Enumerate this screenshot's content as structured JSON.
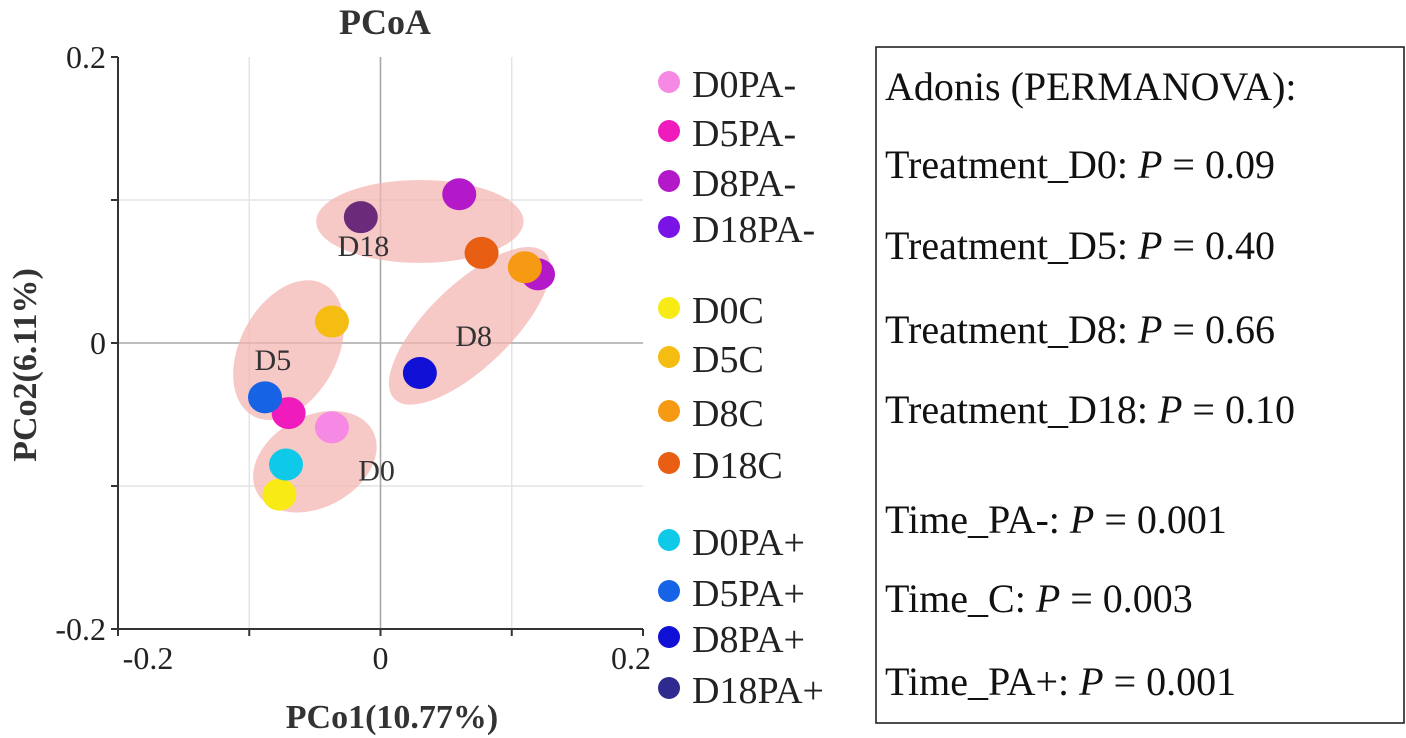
{
  "chart_data": {
    "type": "scatter",
    "title": "PCoA",
    "xlabel": "PCo1(10.77%)",
    "ylabel": "PCo2(6.11%)",
    "xlim": [
      -0.2,
      0.2
    ],
    "ylim": [
      -0.2,
      0.2
    ],
    "x_ticks": [
      "-0.2",
      "0",
      "0.2"
    ],
    "y_ticks": [
      "0.2",
      "0",
      "-0.2"
    ],
    "grid": true,
    "groups": [
      {
        "label": "D0",
        "cx": -0.05,
        "cy": -0.083,
        "rx": 0.05,
        "ry": 0.032,
        "tilt": -28
      },
      {
        "label": "D5",
        "cx": -0.07,
        "cy": -0.005,
        "rx": 0.057,
        "ry": 0.034,
        "tilt": -62
      },
      {
        "label": "D18",
        "cx": 0.03,
        "cy": 0.085,
        "rx": 0.079,
        "ry": 0.029,
        "tilt": 0
      },
      {
        "label": "D8",
        "cx": 0.068,
        "cy": 0.012,
        "rx": 0.08,
        "ry": 0.029,
        "tilt": -44
      }
    ],
    "series": [
      {
        "name": "D0PA-",
        "color": "#f589e4",
        "points": [
          [
            -0.037,
            -0.059
          ]
        ]
      },
      {
        "name": "D5PA-",
        "color": "#f01bbd",
        "points": [
          [
            -0.07,
            -0.049
          ]
        ]
      },
      {
        "name": "D8PA-",
        "color": "#b419c9",
        "points": [
          [
            0.06,
            0.104
          ],
          [
            0.12,
            0.048
          ]
        ]
      },
      {
        "name": "D18PA-",
        "color": "#7a14e6",
        "points": []
      },
      {
        "name": "D0C",
        "color": "#f7ea15",
        "points": [
          [
            -0.077,
            -0.106
          ]
        ]
      },
      {
        "name": "D5C",
        "color": "#f5bd12",
        "points": [
          [
            -0.037,
            0.015
          ]
        ]
      },
      {
        "name": "D8C",
        "color": "#f59a12",
        "points": [
          [
            0.11,
            0.053
          ]
        ]
      },
      {
        "name": "D18C",
        "color": "#e85e12",
        "points": [
          [
            0.077,
            0.063
          ]
        ]
      },
      {
        "name": "D0PA+",
        "color": "#0fc9e8",
        "points": [
          [
            -0.072,
            -0.085
          ]
        ]
      },
      {
        "name": "D5PA+",
        "color": "#1763e6",
        "points": [
          [
            -0.088,
            -0.038
          ]
        ]
      },
      {
        "name": "D8PA+",
        "color": "#1010d6",
        "points": [
          [
            0.03,
            -0.021
          ]
        ]
      },
      {
        "name": "D18PA+",
        "color": "#2f2a8f",
        "points": []
      }
    ],
    "extra_points": [
      {
        "color": "#6b2a7a",
        "x": -0.015,
        "y": 0.088
      }
    ]
  },
  "stats": {
    "heading": "Adonis (PERMANOVA):",
    "lines": [
      {
        "label": "Treatment_D0: ",
        "p": "P",
        "eq": " = 0.09"
      },
      {
        "label": "Treatment_D5: ",
        "p": "P",
        "eq": " = 0.40"
      },
      {
        "label": "Treatment_D8: ",
        "p": "P",
        "eq": " = 0.66"
      },
      {
        "label": "Treatment_D18: ",
        "p": "P",
        "eq": " = 0.10"
      },
      {
        "label": "Time_PA-:  ",
        "p": "P",
        "eq": " = 0.001"
      },
      {
        "label": "Time_C:     ",
        "p": "P",
        "eq": " = 0.003"
      },
      {
        "label": "Time_PA+: ",
        "p": "P",
        "eq": " = 0.001"
      }
    ]
  }
}
